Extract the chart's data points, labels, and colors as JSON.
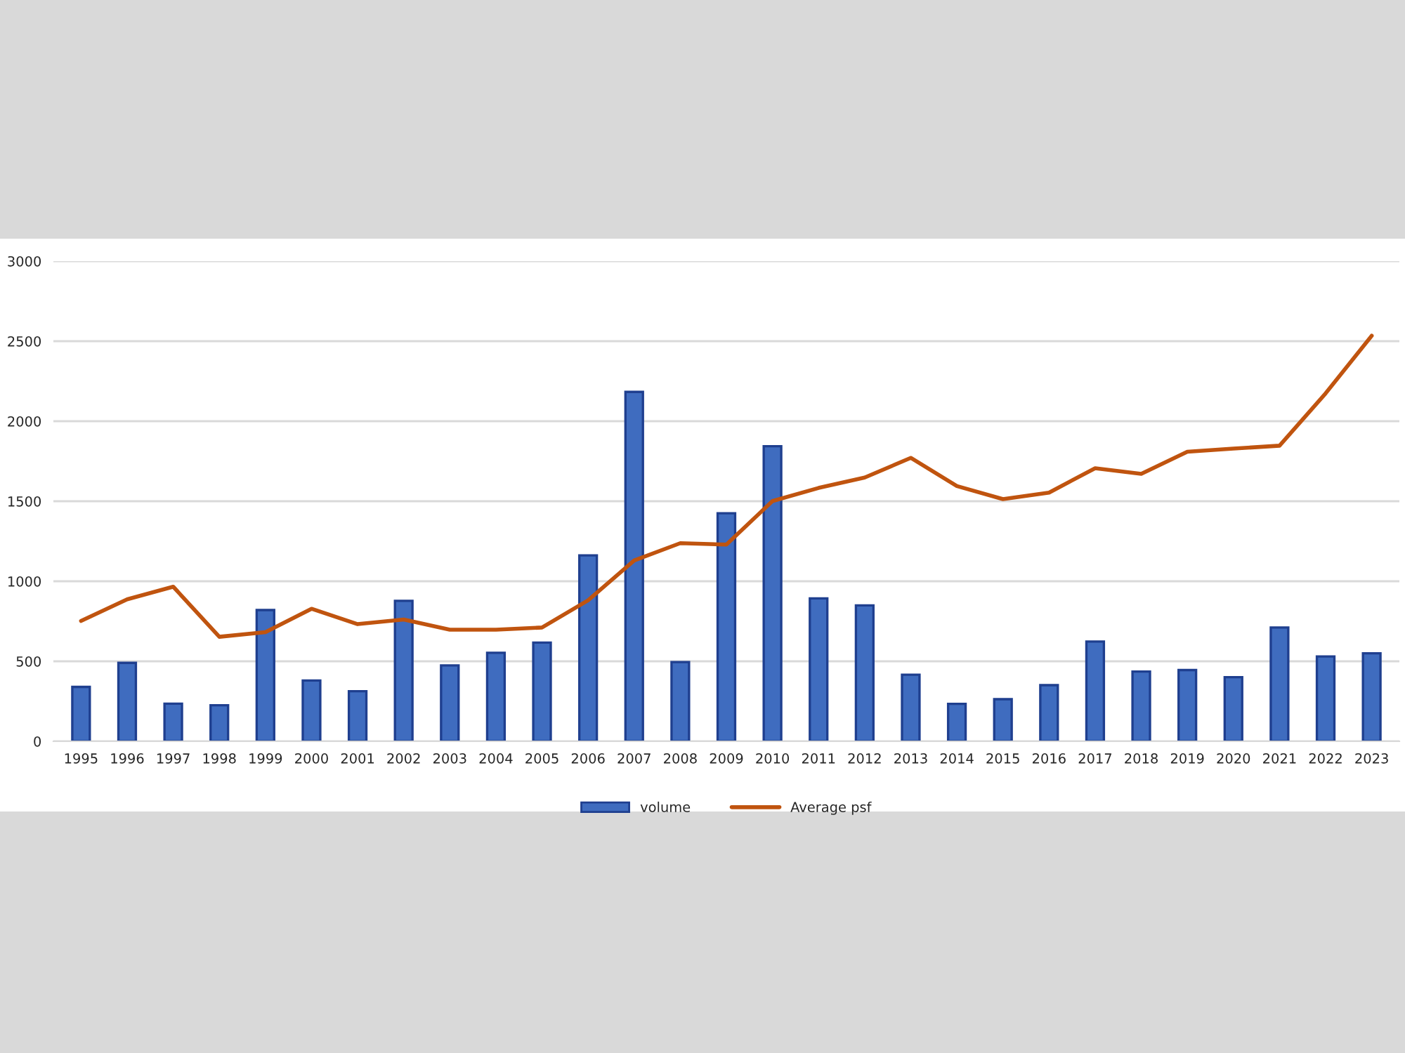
{
  "chart_data": {
    "type": "bar",
    "categories": [
      "1995",
      "1996",
      "1997",
      "1998",
      "1999",
      "2000",
      "2001",
      "2002",
      "2003",
      "2004",
      "2005",
      "2006",
      "2007",
      "2008",
      "2009",
      "2010",
      "2011",
      "2012",
      "2013",
      "2014",
      "2015",
      "2016",
      "2017",
      "2018",
      "2019",
      "2020",
      "2021",
      "2022",
      "2023"
    ],
    "series": [
      {
        "name": "volume",
        "color": "#3f6cbf",
        "values": [
          340,
          490,
          235,
          225,
          820,
          380,
          313,
          878,
          474,
          553,
          617,
          1162,
          2183,
          495,
          1425,
          1844,
          893,
          849,
          416,
          234,
          263,
          351,
          623,
          436,
          445,
          401,
          711,
          530,
          550
        ]
      },
      {
        "name": "Average psf",
        "type": "line",
        "color": "#c0540f",
        "values": [
          752,
          887,
          966,
          653,
          682,
          828,
          732,
          761,
          697,
          697,
          711,
          881,
          1130,
          1238,
          1229,
          1501,
          1583,
          1648,
          1771,
          1595,
          1513,
          1554,
          1706,
          1671,
          1809,
          1829,
          1847,
          2174,
          2534
        ]
      }
    ],
    "ylim": [
      0,
      3000
    ],
    "yticks": [
      0,
      500,
      1000,
      1500,
      2000,
      2500,
      3000
    ],
    "grid": "y",
    "legend": "bottom",
    "marker": "none",
    "line_style": "solid"
  }
}
